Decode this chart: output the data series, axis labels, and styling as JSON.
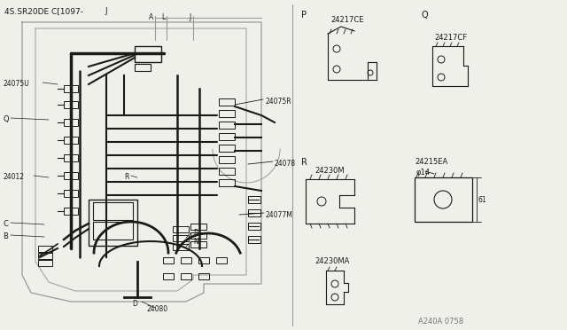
{
  "bg_color": "#f0f0eb",
  "dark": "#1a1a1a",
  "gray": "#999999",
  "med_gray": "#777777",
  "light_gray": "#cccccc",
  "header": "4S.SR20DE C[1097-",
  "header_j": "J",
  "footer": "A240A 0758"
}
